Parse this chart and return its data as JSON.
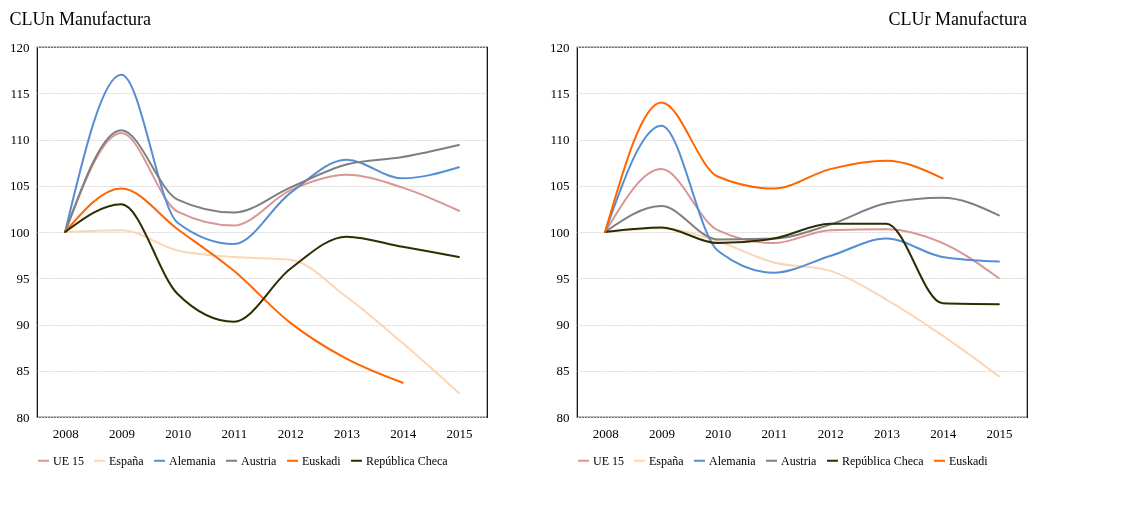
{
  "chart_data": [
    {
      "type": "line",
      "title": "CLUn Manufactura",
      "categories": [
        "2008",
        "2009",
        "2010",
        "2011",
        "2012",
        "2013",
        "2014",
        "2015"
      ],
      "ylim": [
        80,
        120
      ],
      "yticks": [
        80,
        85,
        90,
        95,
        100,
        105,
        110,
        115,
        120
      ],
      "grid": "y",
      "legend": "bottom",
      "series": [
        {
          "name": "UE 15",
          "color": "#d99694",
          "values": [
            100,
            110.7,
            102.2,
            100.7,
            104.5,
            106.2,
            104.8,
            102.3
          ]
        },
        {
          "name": "España",
          "color": "#fcd5b5",
          "values": [
            100,
            100.2,
            98,
            97.3,
            97,
            93,
            88,
            82.6
          ]
        },
        {
          "name": "Alemania",
          "color": "#558ed5",
          "values": [
            100,
            117,
            101,
            98.7,
            104.2,
            107.8,
            105.8,
            107
          ]
        },
        {
          "name": "Austria",
          "color": "#7f7f7f",
          "values": [
            100,
            111,
            103.5,
            102.1,
            104.8,
            107.3,
            108.1,
            109.4
          ]
        },
        {
          "name": "Euskadi",
          "color": "#ff6600",
          "values": [
            100,
            104.7,
            100.3,
            95.8,
            90.2,
            86.3,
            83.7,
            null
          ]
        },
        {
          "name": "República Checa",
          "color": "#2d2d00",
          "values": [
            100,
            103,
            93.3,
            90.3,
            96,
            99.5,
            98.4,
            97.3
          ]
        }
      ]
    },
    {
      "type": "line",
      "title": "CLUr  Manufactura",
      "categories": [
        "2008",
        "2009",
        "2010",
        "2011",
        "2012",
        "2013",
        "2014",
        "2015"
      ],
      "ylim": [
        80,
        120
      ],
      "yticks": [
        80,
        85,
        90,
        95,
        100,
        105,
        110,
        115,
        120
      ],
      "grid": "y",
      "legend": "bottom",
      "series": [
        {
          "name": "UE 15",
          "color": "#d99694",
          "values": [
            100,
            106.8,
            100.2,
            98.8,
            100.2,
            100.3,
            98.8,
            95
          ]
        },
        {
          "name": "España",
          "color": "#fcd5b5",
          "values": [
            100,
            100.4,
            99,
            96.7,
            95.8,
            92.7,
            88.8,
            84.4
          ]
        },
        {
          "name": "Alemania",
          "color": "#558ed5",
          "values": [
            100,
            111.5,
            98,
            95.6,
            97.4,
            99.3,
            97.3,
            96.8
          ]
        },
        {
          "name": "Austria",
          "color": "#7f7f7f",
          "values": [
            100,
            102.8,
            99.2,
            99.3,
            100.8,
            103.1,
            103.7,
            101.8
          ]
        },
        {
          "name": "República Checa",
          "color": "#2d2d00",
          "values": [
            100,
            100.5,
            98.8,
            99.3,
            100.9,
            100.9,
            92.3,
            92.2
          ]
        },
        {
          "name": "Euskadi",
          "color": "#ff6600",
          "values": [
            100,
            114,
            106,
            104.7,
            106.8,
            107.7,
            105.8,
            null
          ]
        }
      ]
    }
  ]
}
